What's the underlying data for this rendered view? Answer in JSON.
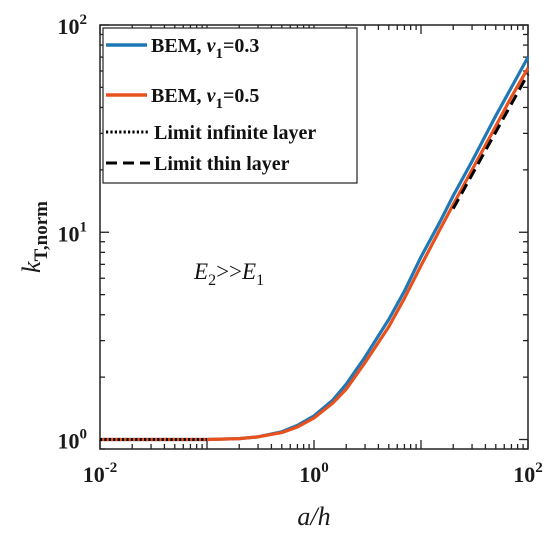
{
  "chart_data": {
    "type": "line",
    "x_scale": "log",
    "y_scale": "log",
    "xlim": [
      0.01,
      100
    ],
    "ylim": [
      0.9,
      100
    ],
    "xlabel": "a/h",
    "ylabel": "k_T,norm",
    "x_ticks": [
      {
        "base": "10",
        "exp": "-2",
        "value": 0.01
      },
      {
        "base": "10",
        "exp": "0",
        "value": 1
      },
      {
        "base": "10",
        "exp": "2",
        "value": 100
      }
    ],
    "y_ticks": [
      {
        "base": "10",
        "exp": "0",
        "value": 1
      },
      {
        "base": "10",
        "exp": "1",
        "value": 10
      },
      {
        "base": "10",
        "exp": "2",
        "value": 100
      }
    ],
    "grid": false,
    "legend_position": "top-left",
    "annotation": {
      "main": "E",
      "sub1": "2",
      "mid": ">>",
      "main2": "E",
      "sub2": "1"
    },
    "series": [
      {
        "name": "BEM,  ν1=0.3",
        "color": "#1f77b4",
        "style": "solid",
        "x": [
          0.01,
          0.03,
          0.1,
          0.2,
          0.3,
          0.5,
          0.7,
          1,
          1.5,
          2,
          3,
          5,
          7,
          10,
          15,
          20,
          30,
          50,
          70,
          100
        ],
        "y": [
          1.0,
          1.0,
          1.0,
          1.01,
          1.03,
          1.09,
          1.17,
          1.3,
          1.55,
          1.85,
          2.5,
          3.8,
          5.2,
          7.6,
          11.2,
          15.0,
          22.0,
          36.5,
          50.0,
          70.0
        ]
      },
      {
        "name": "BEM,  ν1=0.5",
        "color": "#e8501e",
        "style": "solid",
        "x": [
          0.01,
          0.03,
          0.1,
          0.2,
          0.3,
          0.5,
          0.7,
          1,
          1.5,
          2,
          3,
          5,
          7,
          10,
          15,
          20,
          30,
          50,
          70,
          100
        ],
        "y": [
          1.0,
          1.0,
          1.0,
          1.01,
          1.03,
          1.08,
          1.15,
          1.27,
          1.5,
          1.75,
          2.35,
          3.5,
          4.8,
          6.9,
          10.3,
          13.6,
          20.0,
          32.5,
          45.0,
          62.0
        ]
      },
      {
        "name": "Limit infinite layer",
        "color": "#000000",
        "style": "dotted",
        "x": [
          0.01,
          0.1
        ],
        "y": [
          1.0,
          1.0
        ]
      },
      {
        "name": "Limit thin layer",
        "color": "#000000",
        "style": "dashed",
        "x": [
          20,
          100
        ],
        "y": [
          13.0,
          58.0
        ]
      }
    ]
  }
}
